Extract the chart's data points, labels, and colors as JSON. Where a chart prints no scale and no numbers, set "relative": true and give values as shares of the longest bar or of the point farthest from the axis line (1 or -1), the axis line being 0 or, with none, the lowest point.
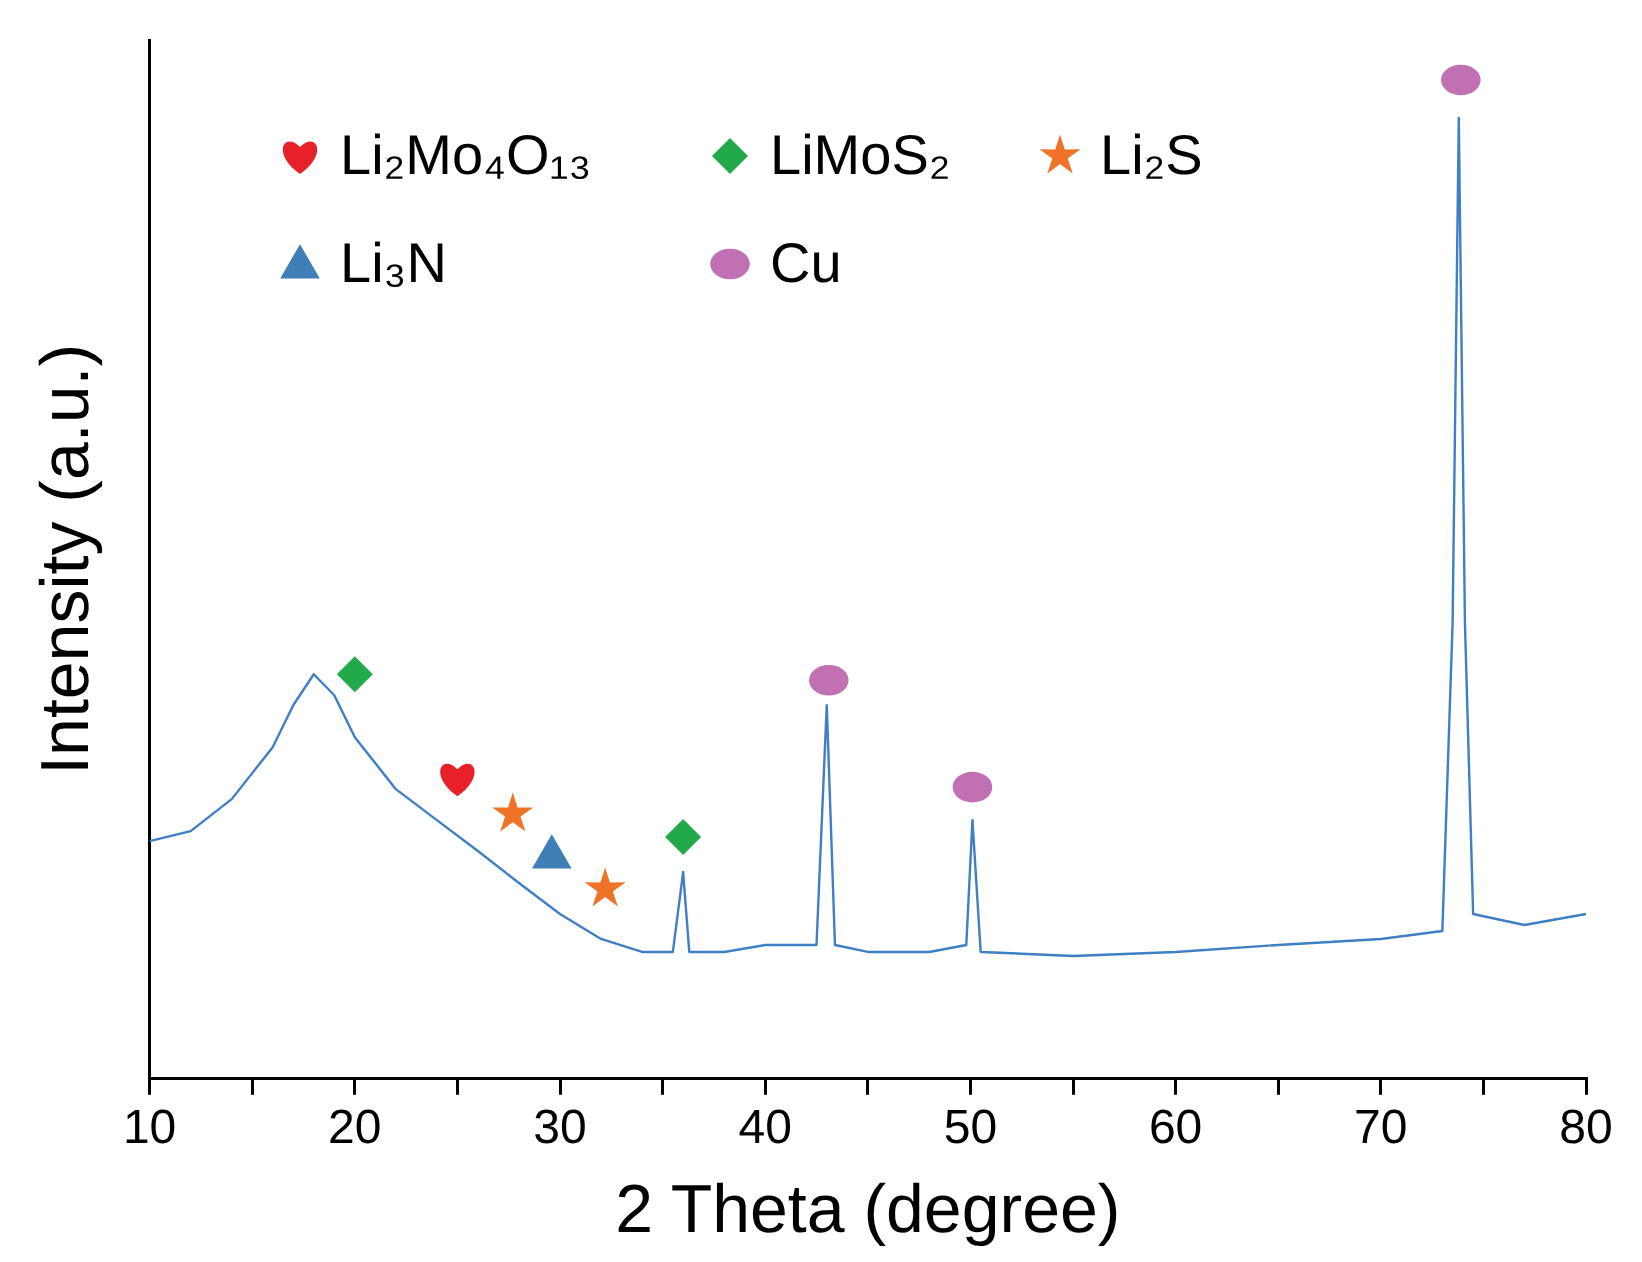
{
  "chart_data": {
    "type": "line",
    "relative": true,
    "xlabel": "2 Theta (degree)",
    "ylabel": "Intensity (a.u.)",
    "xlim": [
      10,
      80
    ],
    "xticks": [
      10,
      {
        "value": 15,
        "label": null
      },
      20,
      {
        "value": 25,
        "label": null
      },
      30,
      {
        "value": 35,
        "label": null
      },
      40,
      {
        "value": 45,
        "label": null
      },
      50,
      {
        "value": 55,
        "label": null
      },
      60,
      {
        "value": 65,
        "label": null
      },
      70,
      {
        "value": 75,
        "label": null
      },
      80
    ],
    "grid": false,
    "legend": "top left",
    "tick_labels": "x",
    "series": [
      {
        "type": "line",
        "color": "#3f7fc4",
        "x": [
          10,
          12,
          14,
          16,
          17,
          18,
          19,
          20,
          22,
          24,
          26,
          28,
          30,
          32,
          34,
          35.5,
          36,
          36.3,
          38,
          40,
          42.5,
          43,
          43.4,
          45,
          48,
          49.8,
          50.1,
          50.5,
          55,
          60,
          65,
          70,
          73,
          73.5,
          73.8,
          74.1,
          74.5,
          77,
          80
        ],
        "values": [
          0.238,
          0.248,
          0.28,
          0.332,
          0.374,
          0.405,
          0.384,
          0.342,
          0.29,
          0.259,
          0.228,
          0.196,
          0.165,
          0.14,
          0.127,
          0.127,
          0.207,
          0.127,
          0.127,
          0.134,
          0.134,
          0.374,
          0.134,
          0.127,
          0.127,
          0.134,
          0.259,
          0.127,
          0.123,
          0.127,
          0.134,
          0.14,
          0.148,
          0.457,
          0.962,
          0.457,
          0.165,
          0.154,
          0.165
        ]
      },
      {
        "type": "scatter",
        "name": "Li₂Mo₄O₁₃",
        "color": "#e8202a",
        "x": [
          25
        ],
        "values": [
          0.301
        ]
      },
      {
        "type": "scatter",
        "name": "LiMoS₂",
        "color": "#22a94a",
        "marker": "diamond",
        "x": [
          20,
          36
        ],
        "values": [
          0.405,
          0.242
        ]
      },
      {
        "type": "scatter",
        "name": "Li₂S",
        "color": "#ee7326",
        "marker": "star",
        "x": [
          27.7,
          32.2
        ],
        "values": [
          0.265,
          0.19
        ]
      },
      {
        "type": "scatter",
        "name": "Li₃N",
        "color": "#3e7fb8",
        "marker": "triangle",
        "x": [
          29.6
        ],
        "values": [
          0.225
        ]
      },
      {
        "type": "scatter",
        "name": "Cu",
        "color": "#c070b3",
        "marker": "circle",
        "x": [
          43.1,
          50.1,
          73.9
        ],
        "values": [
          0.399,
          0.292,
          1
        ]
      }
    ]
  }
}
